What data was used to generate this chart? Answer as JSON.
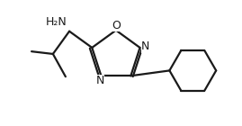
{
  "background_color": "#ffffff",
  "line_color": "#1a1a1a",
  "line_width": 1.6,
  "doff": 0.018,
  "figsize": [
    2.69,
    1.4
  ],
  "dpi": 100,
  "xlim": [
    0,
    1
  ],
  "ylim": [
    0,
    1
  ]
}
